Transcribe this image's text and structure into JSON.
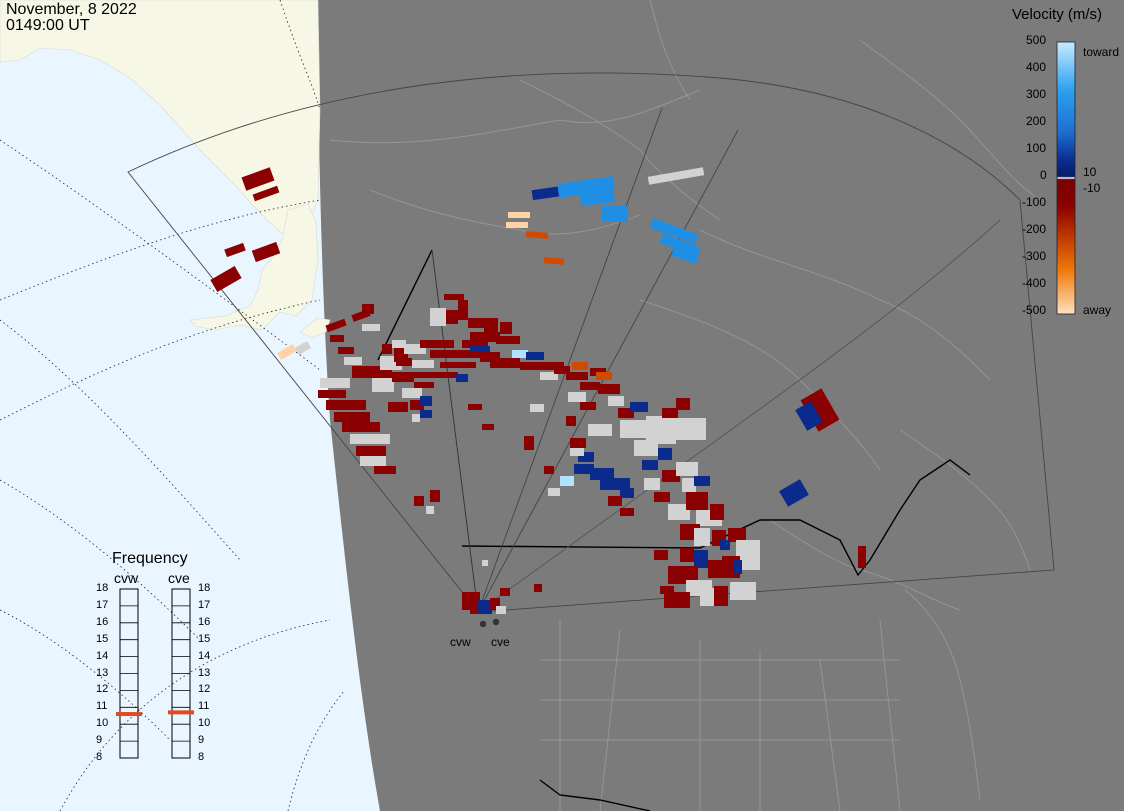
{
  "header": {
    "date": "November, 8 2022",
    "time": "0149:00 UT"
  },
  "velocity_scale": {
    "title": "Velocity (m/s)",
    "ticks": [
      "500",
      "400",
      "300",
      "200",
      "100",
      "0",
      "-100",
      "-200",
      "-300",
      "-400",
      "-500"
    ],
    "side_labels": {
      "toward": "toward",
      "away": "away",
      "plus10": "10",
      "minus10": "-10"
    },
    "colors": {
      "toward_light": "#aee4ff",
      "toward_mid": "#1f8fe6",
      "toward_dark": "#0a2a8c",
      "away_dark": "#8b0000",
      "away_mid": "#d24a00",
      "away_light": "#ffd2a8"
    }
  },
  "frequency": {
    "title": "Frequency",
    "radars": [
      {
        "name": "cvw",
        "value": 10.6
      },
      {
        "name": "cve",
        "value": 10.7
      }
    ],
    "ticks": [
      "18",
      "17",
      "16",
      "15",
      "14",
      "13",
      "12",
      "11",
      "10",
      "9",
      "8"
    ],
    "marker_color": "#e04a1e"
  },
  "radar_sites": [
    "cvw",
    "cve"
  ],
  "map_colors": {
    "ocean": "#eaf6ff",
    "night": "#7b7b7b",
    "land_day": "#f7f7e6",
    "ground_scatter": "#d2d2d2",
    "boundary": "#000000"
  }
}
